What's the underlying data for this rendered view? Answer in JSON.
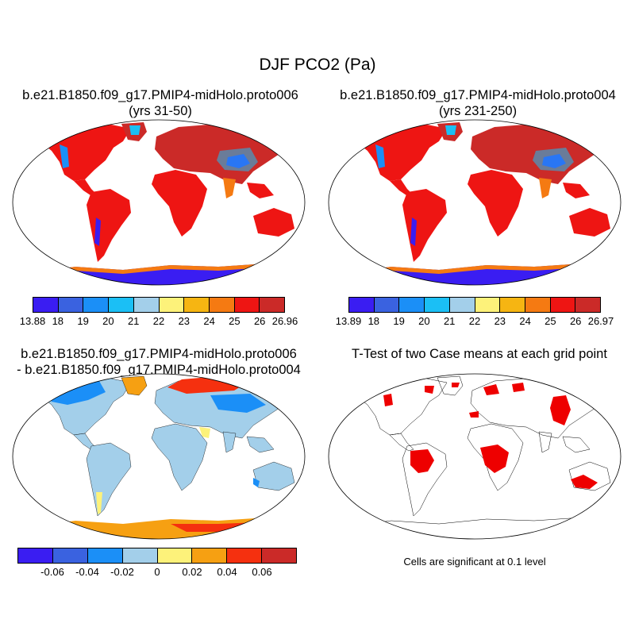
{
  "title": "DJF PCO2 (Pa)",
  "panels": [
    {
      "title_line1": "b.e21.B1850.f09_g17.PMIP4-midHolo.proto006",
      "title_line2": "(yrs 31-50)",
      "colorbar": {
        "colors": [
          "#3a1df2",
          "#3a62e0",
          "#1b8ff7",
          "#1bbff5",
          "#a3cfea",
          "#fdf27a",
          "#f6b512",
          "#f57a12",
          "#ee1513",
          "#cb2a28"
        ],
        "labels": [
          "13.88",
          "18",
          "19",
          "20",
          "21",
          "22",
          "23",
          "24",
          "25",
          "26",
          "26.96"
        ]
      }
    },
    {
      "title_line1": "b.e21.B1850.f09_g17.PMIP4-midHolo.proto004",
      "title_line2": "(yrs 231-250)",
      "colorbar": {
        "colors": [
          "#3a1df2",
          "#3a62e0",
          "#1b8ff7",
          "#1bbff5",
          "#a3cfea",
          "#fdf27a",
          "#f6b512",
          "#f57a12",
          "#ee1513",
          "#cb2a28"
        ],
        "labels": [
          "13.89",
          "18",
          "19",
          "20",
          "21",
          "22",
          "23",
          "24",
          "25",
          "26",
          "26.97"
        ]
      }
    },
    {
      "title_line1": "b.e21.B1850.f09_g17.PMIP4-midHolo.proto006",
      "title_line2": "- b.e21.B1850.f09_g17.PMIP4-midHolo.proto004",
      "colorbar": {
        "colors": [
          "#3a1df2",
          "#3a62e0",
          "#1b8ff7",
          "#a3cfea",
          "#fdf27a",
          "#f6a012",
          "#f5300f",
          "#cb2a28"
        ],
        "labels": [
          "-0.06",
          "-0.04",
          "-0.02",
          "0",
          "0.02",
          "0.04",
          "0.06"
        ]
      }
    },
    {
      "title_line1": "T-Test of two Case means at each grid point",
      "note": "Cells are significant at 0.1 level",
      "significance_color": "#ee0000"
    }
  ]
}
